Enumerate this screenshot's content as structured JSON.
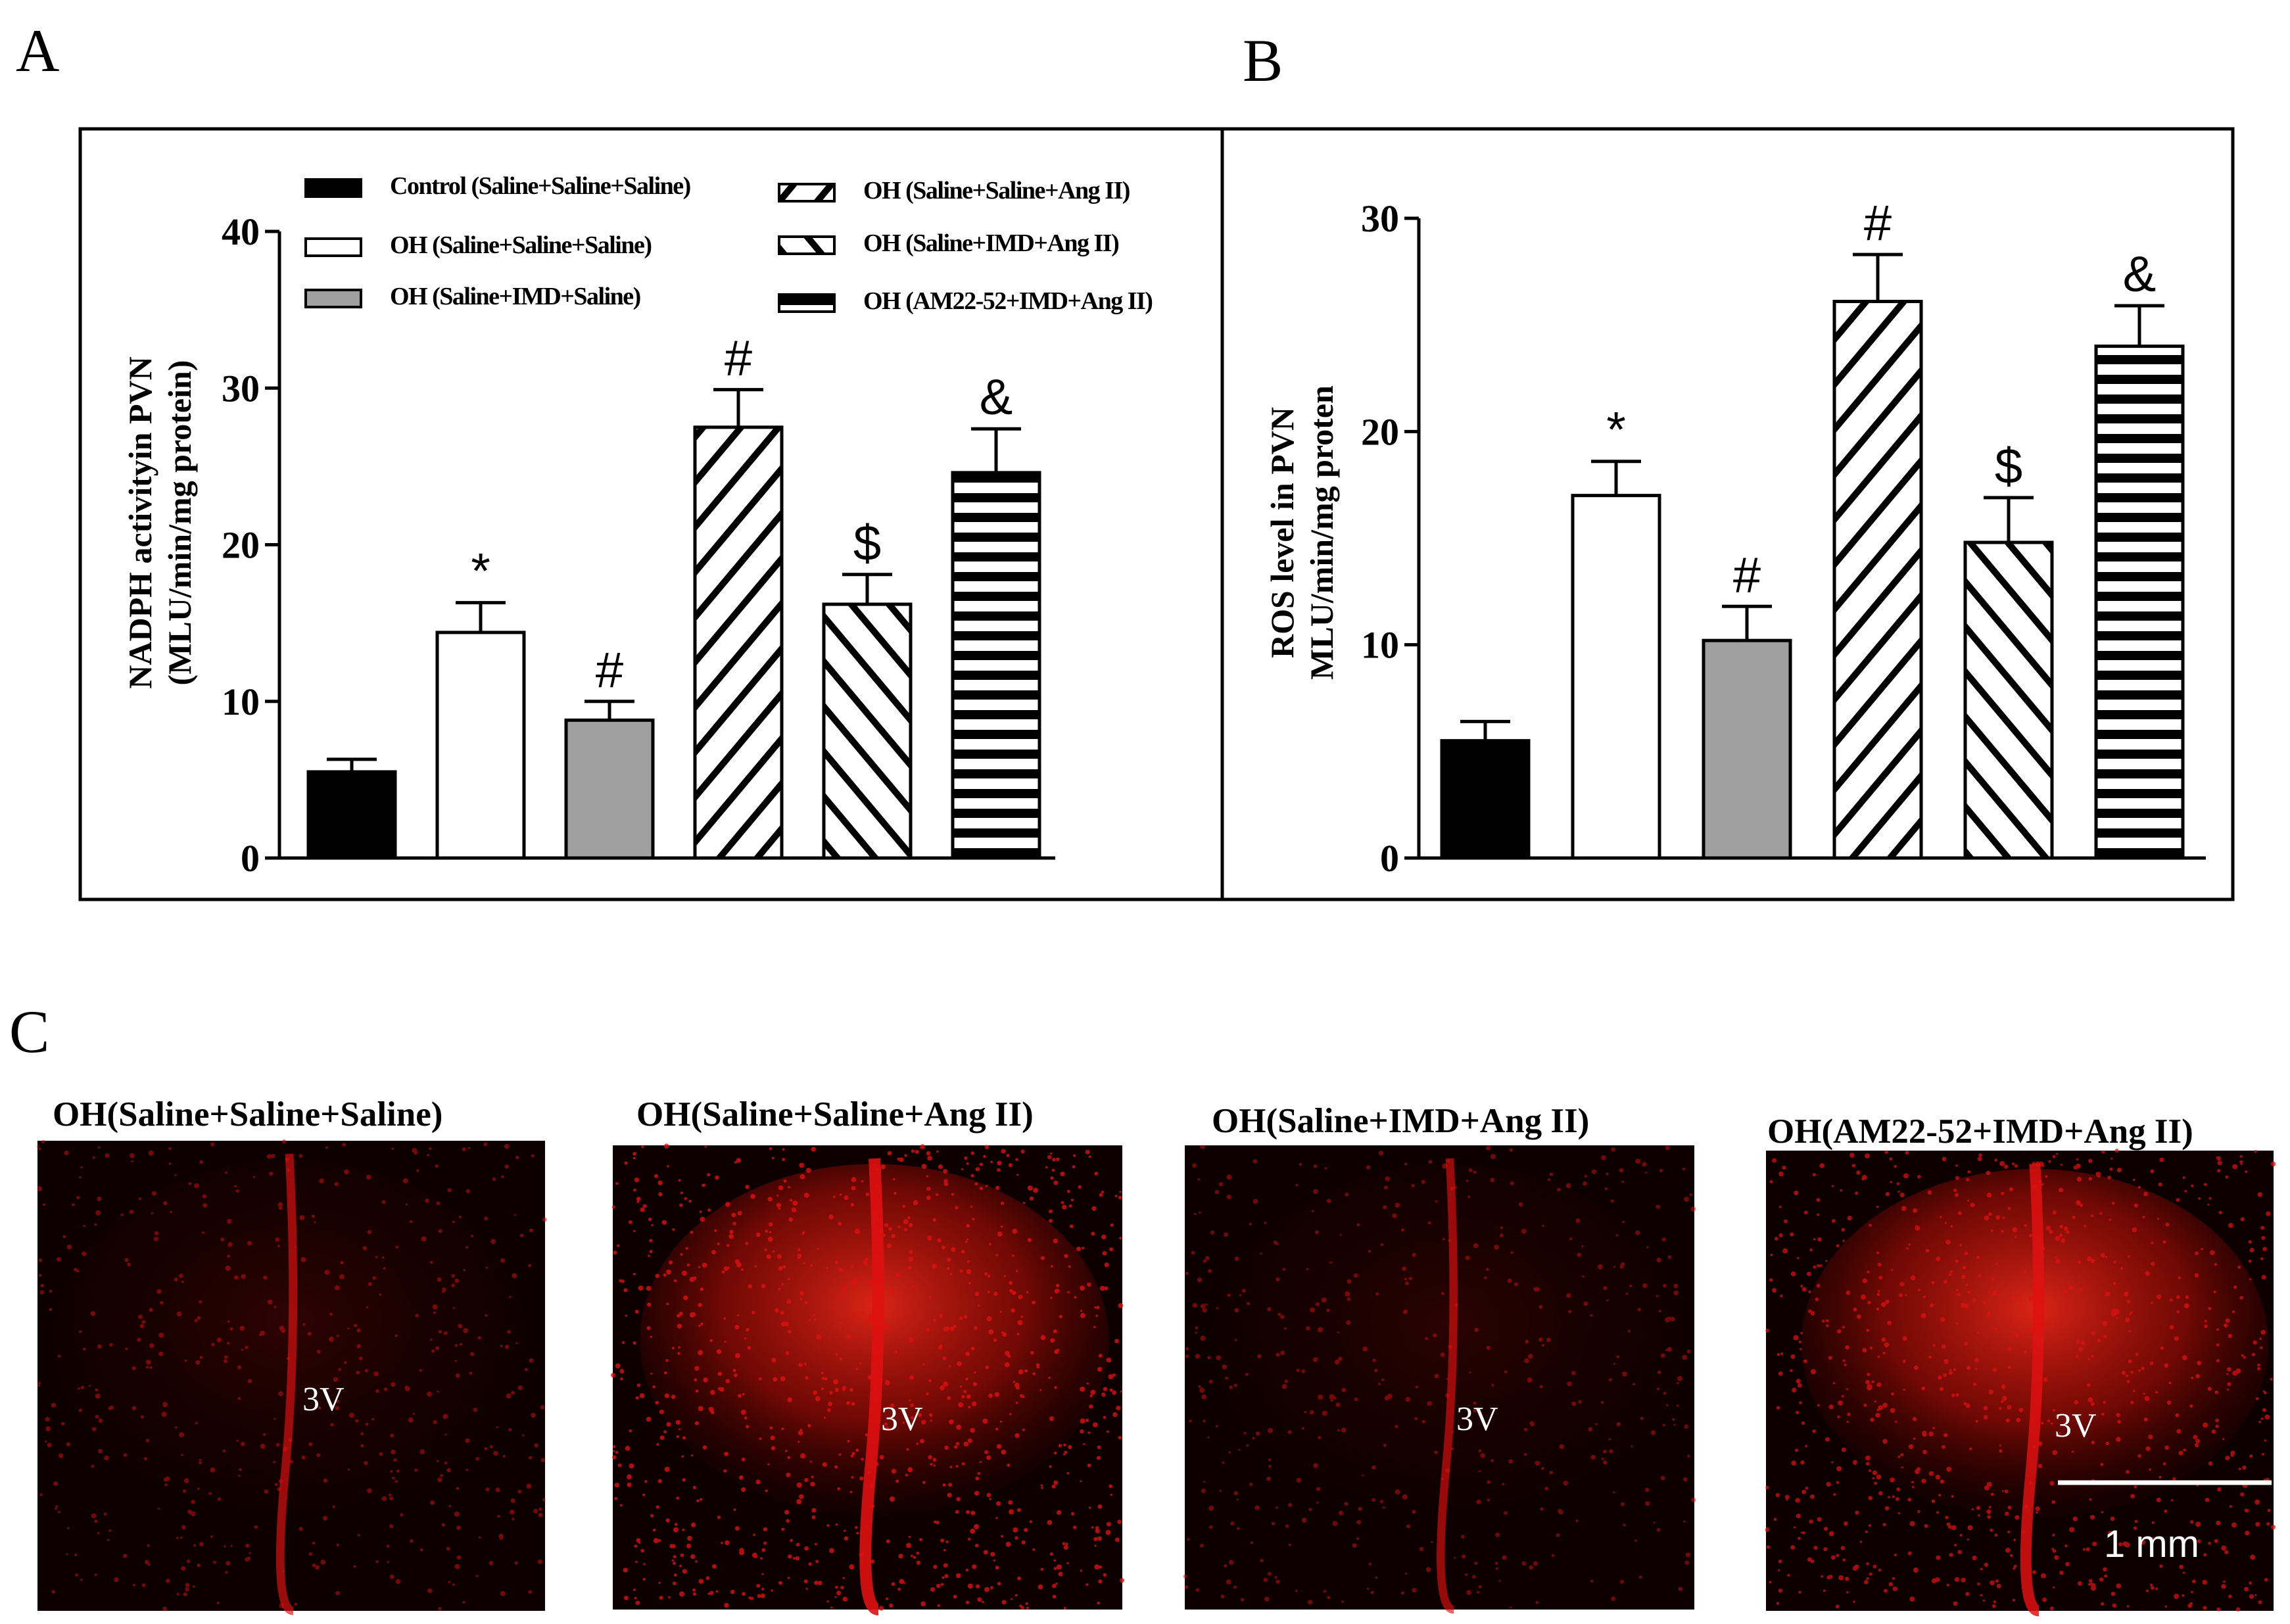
{
  "panels": {
    "a": "A",
    "b": "B",
    "c": "C"
  },
  "colors": {
    "control": "#000000",
    "oh_saline": "#ffffff",
    "imd": "#a0a0a0",
    "hatch": "#000000",
    "micrograph_bg": "#0d0000",
    "fluorescence": "#e01010"
  },
  "chart_data": [
    {
      "type": "bar",
      "panel": "A",
      "ylabel_line1": "NADPH activityin PVN",
      "ylabel_line2": "(MLU/min/mg protein)",
      "ylim": [
        0,
        40
      ],
      "yticks": [
        "0",
        "10",
        "20",
        "30",
        "40"
      ],
      "tick_values": [
        0,
        10,
        20,
        30,
        40
      ],
      "categories": [
        "Control (Saline+Saline+Saline)",
        "OH (Saline+Saline+Saline)",
        "OH (Saline+IMD+Saline)",
        "OH (Saline+Saline+Ang II)",
        "OH (Saline+IMD+Ang II)",
        "OH (AM22-52+IMD+Ang II)"
      ],
      "values": [
        5.5,
        14.4,
        8.8,
        27.5,
        16.2,
        24.6
      ],
      "errors": [
        0.8,
        1.9,
        1.2,
        2.4,
        1.9,
        2.8
      ],
      "significance": [
        "",
        "*",
        "#",
        "#",
        "$",
        "&"
      ],
      "fills": [
        "solid-black",
        "white",
        "gray",
        "diag-up",
        "diag-down",
        "horizontal"
      ],
      "legend": [
        "Control (Saline+Saline+Saline)",
        "OH (Saline+Saline+Saline)",
        "OH (Saline+IMD+Saline)",
        "OH (Saline+Saline+Ang II)",
        "OH (Saline+IMD+Ang II)",
        "OH (AM22-52+IMD+Ang II)"
      ]
    },
    {
      "type": "bar",
      "panel": "B",
      "ylabel_line1": "ROS level in PVN",
      "ylabel_line2": "MLU/min/mg proten",
      "ylim": [
        0,
        30
      ],
      "yticks": [
        "0",
        "10",
        "20",
        "30"
      ],
      "tick_values": [
        0,
        10,
        20,
        30
      ],
      "values": [
        5.5,
        17.0,
        10.2,
        26.1,
        14.8,
        24.0
      ],
      "errors": [
        0.9,
        1.6,
        1.6,
        2.2,
        2.1,
        1.9
      ],
      "significance": [
        "",
        "*",
        "#",
        "#",
        "$",
        "&"
      ],
      "fills": [
        "solid-black",
        "white",
        "gray",
        "diag-up",
        "diag-down",
        "horizontal"
      ]
    }
  ],
  "micrographs": {
    "titles": [
      "OH(Saline+Saline+Saline)",
      "OH(Saline+Saline+Ang II)",
      "OH(Saline+IMD+Ang II)",
      "OH(AM22-52+IMD+Ang II)"
    ],
    "ventricle_label": "3V",
    "scale_bar": "1 mm",
    "intensity": [
      0.35,
      1.0,
      0.3,
      0.85
    ]
  }
}
